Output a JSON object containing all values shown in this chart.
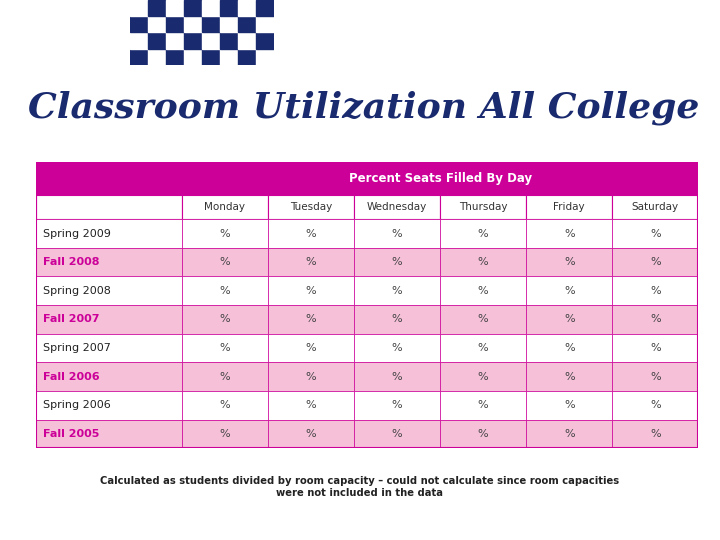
{
  "title": "Classroom Utilization All College",
  "header_label": "Percent Seats Filled By Day",
  "col_headers": [
    "Monday",
    "Tuesday",
    "Wednesday",
    "Thursday",
    "Friday",
    "Saturday"
  ],
  "row_labels": [
    "Spring 2009",
    "Fall 2008",
    "Spring 2008",
    "Fall 2007",
    "Spring 2007",
    "Fall 2006",
    "Spring 2006",
    "Fall 2005"
  ],
  "cell_value": "%",
  "footnote": "Calculated as students divided by room capacity – could not calculate since room capacities\nwere not included in the data",
  "header_bg": "#CC0099",
  "header_fg": "#FFFFFF",
  "col_header_bg": "#FFFFFF",
  "col_header_fg": "#333333",
  "row_odd_bg": "#FFFFFF",
  "row_even_bg": "#F5C0D8",
  "row_label_fg_normal": "#222222",
  "row_label_fg_bold": "#CC0099",
  "table_border": "#CC0099",
  "title_color": "#1a2a6e",
  "logo_navy": "#1a2a6e",
  "background": "#FFFFFF"
}
